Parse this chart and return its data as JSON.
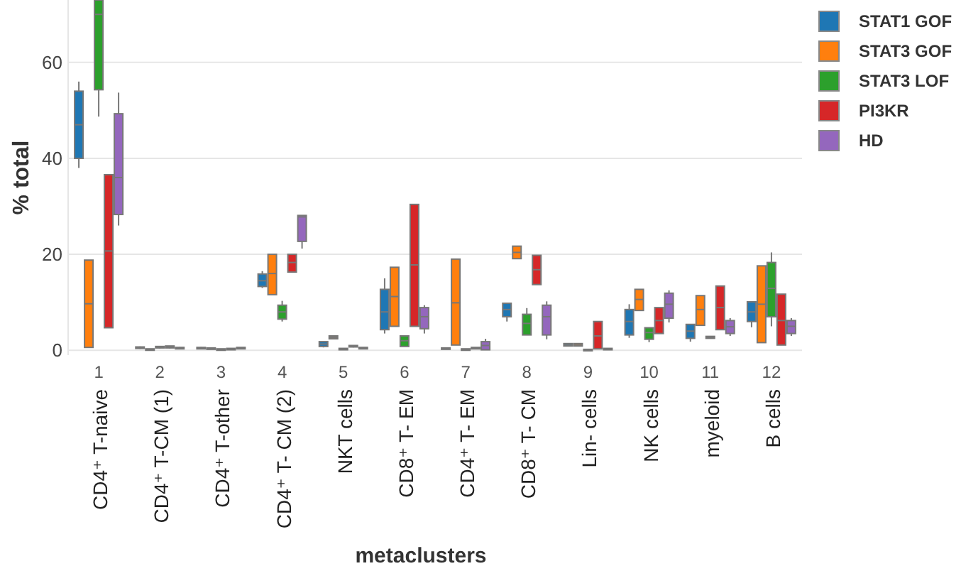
{
  "chart_data": {
    "type": "box",
    "xlabel": "metaclusters",
    "ylabel": "% total",
    "categories": [
      "1\nCD4⁺ T-naive",
      "2\nCD4⁺ T-CM (1)",
      "3\nCD4⁺ T-other",
      "4\nCD4⁺ T- CM (2)",
      "5\nNKT cells",
      "6\nCD8⁺ T- EM",
      "7\nCD4⁺ T- EM",
      "8\nCD8⁺ T- CM",
      "9\nLin- cells",
      "10\nNK cells",
      "11\nmyeloid",
      "12\nB cells"
    ],
    "ylim": [
      -1,
      73
    ],
    "yticks": [
      0,
      20,
      40,
      60
    ],
    "grid": "y",
    "legend": "top right",
    "series": [
      {
        "name": "STAT1 GOF",
        "color": "#1f77b4",
        "boxes": [
          {
            "low": 38,
            "q1": 40,
            "median": 47,
            "q3": 54,
            "high": 56
          },
          {
            "low": 0.3,
            "q1": 0.4,
            "median": 0.5,
            "q3": 0.7,
            "high": 0.8
          },
          {
            "low": 0.3,
            "q1": 0.4,
            "median": 0.5,
            "q3": 0.6,
            "high": 0.7
          },
          {
            "low": 13,
            "q1": 13.3,
            "median": 14.5,
            "q3": 15.9,
            "high": 16.5
          },
          {
            "low": 0.6,
            "q1": 0.8,
            "median": 1.3,
            "q3": 1.8,
            "high": 1.8
          },
          {
            "low": 3.5,
            "q1": 4.3,
            "median": 8,
            "q3": 12.7,
            "high": 15
          },
          {
            "low": 0.2,
            "q1": 0.3,
            "median": 0.4,
            "q3": 0.5,
            "high": 0.6
          },
          {
            "low": 6,
            "q1": 7,
            "median": 8.5,
            "q3": 9.8,
            "high": 9.8
          },
          {
            "low": 0.9,
            "q1": 0.9,
            "median": 1.1,
            "q3": 1.4,
            "high": 1.4
          },
          {
            "low": 2.6,
            "q1": 3.2,
            "median": 6,
            "q3": 8.5,
            "high": 9.6
          },
          {
            "low": 1.8,
            "q1": 2.5,
            "median": 4,
            "q3": 5.4,
            "high": 5.4
          },
          {
            "low": 4.8,
            "q1": 6,
            "median": 8,
            "q3": 10.1,
            "high": 10.1
          }
        ]
      },
      {
        "name": "STAT3 GOF",
        "color": "#ff7f0e",
        "boxes": [
          {
            "low": 0.5,
            "q1": 0.6,
            "median": 9.7,
            "q3": 18.8,
            "high": 18.8
          },
          {
            "low": 0.1,
            "q1": 0.1,
            "median": 0.2,
            "q3": 0.3,
            "high": 0.3
          },
          {
            "low": 0.2,
            "q1": 0.3,
            "median": 0.4,
            "q3": 0.5,
            "high": 0.5
          },
          {
            "low": 11.6,
            "q1": 11.6,
            "median": 16,
            "q3": 20,
            "high": 20
          },
          {
            "low": 2.4,
            "q1": 2.4,
            "median": 2.7,
            "q3": 3,
            "high": 3
          },
          {
            "low": 5,
            "q1": 5,
            "median": 11.2,
            "q3": 17.3,
            "high": 17.3
          },
          {
            "low": 1.1,
            "q1": 1.1,
            "median": 9.9,
            "q3": 19,
            "high": 19
          },
          {
            "low": 19.1,
            "q1": 19.1,
            "median": 20.4,
            "q3": 21.7,
            "high": 21.7
          },
          {
            "low": 0.8,
            "q1": 0.9,
            "median": 1.1,
            "q3": 1.4,
            "high": 1.4
          },
          {
            "low": 8.3,
            "q1": 8.3,
            "median": 10.6,
            "q3": 12.7,
            "high": 12.7
          },
          {
            "low": 5.2,
            "q1": 5.2,
            "median": 8.5,
            "q3": 11.4,
            "high": 11.4
          },
          {
            "low": 1.6,
            "q1": 1.6,
            "median": 9.6,
            "q3": 17.6,
            "high": 17.6
          }
        ]
      },
      {
        "name": "STAT3 LOF",
        "color": "#2ca02c",
        "boxes": [
          {
            "low": 48.7,
            "q1": 54.3,
            "median": 70,
            "q3": 73,
            "high": 73
          },
          {
            "low": 0.4,
            "q1": 0.5,
            "median": 0.6,
            "q3": 0.8,
            "high": 0.8
          },
          {
            "low": 0.1,
            "q1": 0.1,
            "median": 0.2,
            "q3": 0.3,
            "high": 0.3
          },
          {
            "low": 6,
            "q1": 6.5,
            "median": 8,
            "q3": 9.4,
            "high": 10.3
          },
          {
            "low": 0.1,
            "q1": 0.2,
            "median": 0.3,
            "q3": 0.4,
            "high": 0.4
          },
          {
            "low": 0.8,
            "q1": 0.8,
            "median": 2,
            "q3": 3,
            "high": 3
          },
          {
            "low": 0.1,
            "q1": 0.1,
            "median": 0.2,
            "q3": 0.3,
            "high": 0.3
          },
          {
            "low": 3.2,
            "q1": 3.2,
            "median": 5.6,
            "q3": 7.5,
            "high": 8.8
          },
          {
            "low": 0,
            "q1": 0.1,
            "median": 0.1,
            "q3": 0.2,
            "high": 0.2
          },
          {
            "low": 1.7,
            "q1": 2.3,
            "median": 3.7,
            "q3": 4.7,
            "high": 4.7
          },
          {
            "low": 2.5,
            "q1": 2.5,
            "median": 2.7,
            "q3": 2.9,
            "high": 2.9
          },
          {
            "low": 5,
            "q1": 7,
            "median": 12.9,
            "q3": 18.3,
            "high": 20.4
          }
        ]
      },
      {
        "name": "PI3KR",
        "color": "#d62728",
        "boxes": [
          {
            "low": 4.7,
            "q1": 4.7,
            "median": 20.7,
            "q3": 36.6,
            "high": 36.6
          },
          {
            "low": 0.4,
            "q1": 0.5,
            "median": 0.7,
            "q3": 0.9,
            "high": 0.9
          },
          {
            "low": 0.1,
            "q1": 0.2,
            "median": 0.3,
            "q3": 0.4,
            "high": 0.4
          },
          {
            "low": 16.3,
            "q1": 16.3,
            "median": 18.3,
            "q3": 20,
            "high": 20
          },
          {
            "low": 0.6,
            "q1": 0.7,
            "median": 0.8,
            "q3": 1,
            "high": 1
          },
          {
            "low": 5,
            "q1": 5,
            "median": 17.8,
            "q3": 30.4,
            "high": 30.4
          },
          {
            "low": 0.3,
            "q1": 0.3,
            "median": 0.4,
            "q3": 0.6,
            "high": 0.6
          },
          {
            "low": 13.7,
            "q1": 13.7,
            "median": 16.8,
            "q3": 19.8,
            "high": 19.8
          },
          {
            "low": 0.3,
            "q1": 0.3,
            "median": 3,
            "q3": 6,
            "high": 6
          },
          {
            "low": 3.5,
            "q1": 3.5,
            "median": 6.2,
            "q3": 8.9,
            "high": 8.9
          },
          {
            "low": 4.3,
            "q1": 4.3,
            "median": 8.9,
            "q3": 13.4,
            "high": 13.4
          },
          {
            "low": 1.1,
            "q1": 1.1,
            "median": 6.2,
            "q3": 11.7,
            "high": 11.7
          }
        ]
      },
      {
        "name": "HD",
        "color": "#9467bd",
        "boxes": [
          {
            "low": 26,
            "q1": 28.3,
            "median": 36,
            "q3": 49.3,
            "high": 53.7
          },
          {
            "low": 0.3,
            "q1": 0.4,
            "median": 0.5,
            "q3": 0.6,
            "high": 0.7
          },
          {
            "low": 0.3,
            "q1": 0.4,
            "median": 0.5,
            "q3": 0.6,
            "high": 0.6
          },
          {
            "low": 21.2,
            "q1": 22.7,
            "median": 27.8,
            "q3": 28.1,
            "high": 28.1
          },
          {
            "low": 0.3,
            "q1": 0.4,
            "median": 0.5,
            "q3": 0.6,
            "high": 0.6
          },
          {
            "low": 3.5,
            "q1": 4.5,
            "median": 7,
            "q3": 8.9,
            "high": 9.4
          },
          {
            "low": 0.1,
            "q1": 0.1,
            "median": 1,
            "q3": 1.8,
            "high": 2.4
          },
          {
            "low": 2.3,
            "q1": 3.2,
            "median": 7,
            "q3": 9.4,
            "high": 10.2
          },
          {
            "low": 0.2,
            "q1": 0.2,
            "median": 0.3,
            "q3": 0.4,
            "high": 0.4
          },
          {
            "low": 5.8,
            "q1": 6.7,
            "median": 9.6,
            "q3": 11.9,
            "high": 12.5
          },
          {
            "low": 3,
            "q1": 3.5,
            "median": 4.9,
            "q3": 6.2,
            "high": 6.7
          },
          {
            "low": 3,
            "q1": 3.5,
            "median": 5,
            "q3": 6.2,
            "high": 6.7
          }
        ]
      }
    ]
  }
}
